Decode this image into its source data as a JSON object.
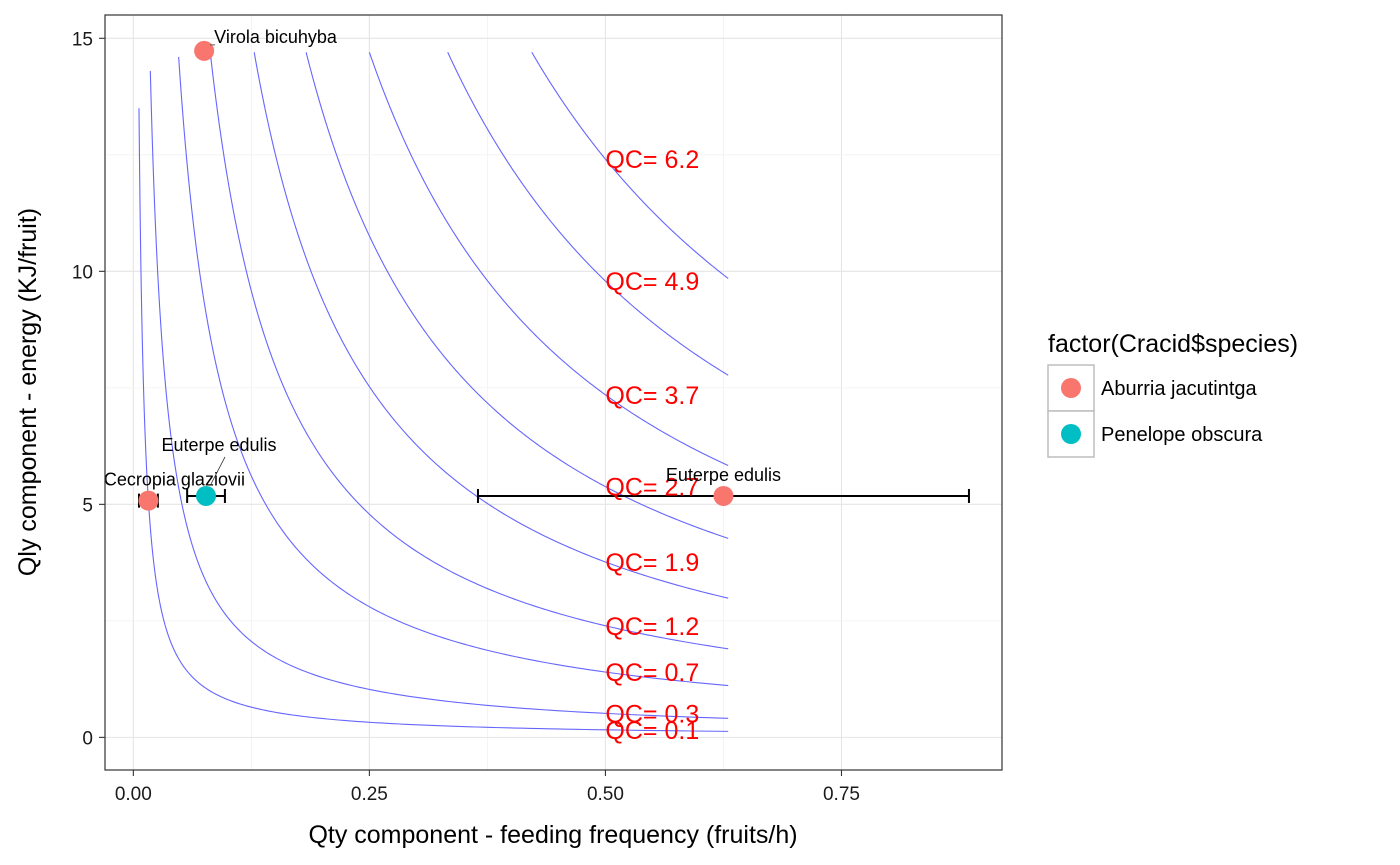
{
  "chart_data": {
    "type": "scatter",
    "xlabel": "Qty component - feeding frequency (fruits/h)",
    "ylabel": "Qly component - energy (KJ/fruit)",
    "xlim": [
      -0.03,
      0.92
    ],
    "ylim": [
      -0.7,
      15.5
    ],
    "x_ticks": [
      0.0,
      0.25,
      0.5,
      0.75
    ],
    "x_tick_labels": [
      "0.00",
      "0.25",
      "0.50",
      "0.75"
    ],
    "y_ticks": [
      0,
      5,
      10,
      15
    ],
    "y_tick_labels": [
      "0",
      "5",
      "10",
      "15"
    ],
    "grid": true,
    "legend": {
      "title": "factor(Cracid$species)",
      "position": "right",
      "entries": [
        {
          "name": "Aburria jacutintga",
          "color": "#F8766D"
        },
        {
          "name": "Penelope obscura",
          "color": "#00BFC4"
        }
      ]
    },
    "contour_color": "#6666ff",
    "contours": [
      {
        "qc": 0.1,
        "label": "QC=  0.1",
        "x_start": 0.006,
        "y_start": 13.5
      },
      {
        "qc": 0.3,
        "label": "QC=  0.3",
        "x_start": 0.018,
        "y_start": 14.3
      },
      {
        "qc": 0.7,
        "label": "QC=  0.7",
        "x_start": 0.048,
        "y_start": 14.6
      },
      {
        "qc": 1.2,
        "label": "QC=  1.2",
        "x_start": 0.082,
        "y_start": 14.6
      },
      {
        "qc": 1.9,
        "label": "QC=  1.9",
        "x_start": 0.128,
        "y_start": 14.7
      },
      {
        "qc": 2.7,
        "label": "QC=  2.7",
        "x_start": 0.183,
        "y_start": 14.7
      },
      {
        "qc": 3.7,
        "label": "QC=  3.7",
        "x_start": 0.25,
        "y_start": 14.7
      },
      {
        "qc": 4.9,
        "label": "QC=  4.9",
        "x_start": 0.333,
        "y_start": 14.7
      },
      {
        "qc": 6.2,
        "label": "QC=  6.2",
        "x_start": 0.422,
        "y_start": 14.7
      }
    ],
    "contour_x_end": 0.63,
    "contour_label_x": 0.5,
    "series": [
      {
        "name": "Aburria jacutintga",
        "color": "#F8766D",
        "points": [
          {
            "x": 0.075,
            "y": 14.73,
            "label": "Virola bicuhyba",
            "err_low": null,
            "err_high": null
          },
          {
            "x": 0.016,
            "y": 5.08,
            "label": "Cecropia glaziovii",
            "err_low": 0.006,
            "err_high": 0.026
          },
          {
            "x": 0.625,
            "y": 5.18,
            "label": "Euterpe edulis",
            "err_low": 0.365,
            "err_high": 0.885
          }
        ]
      },
      {
        "name": "Penelope obscura",
        "color": "#00BFC4",
        "points": [
          {
            "x": 0.077,
            "y": 5.18,
            "label": "Euterpe edulis",
            "err_low": 0.057,
            "err_high": 0.097
          }
        ]
      }
    ]
  }
}
